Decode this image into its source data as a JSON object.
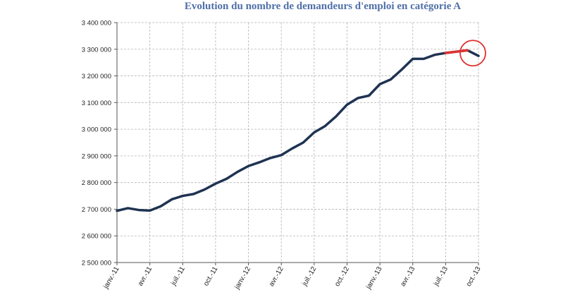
{
  "chart_data": {
    "type": "line",
    "title": "Evolution du nombre de demandeurs d'emploi en catégorie A",
    "xlabel": "",
    "ylabel": "",
    "ylim": [
      2500000,
      3400000
    ],
    "yticks": [
      2500000,
      2600000,
      2700000,
      2800000,
      2900000,
      3000000,
      3100000,
      3200000,
      3300000,
      3400000
    ],
    "ytick_labels": [
      "2 500 000",
      "2 600 000",
      "2 700 000",
      "2 800 000",
      "2 900 000",
      "3 000 000",
      "3 100 000",
      "3 200 000",
      "3 300 000",
      "3 400 000"
    ],
    "xtick_labels": [
      {
        "index": 0,
        "label": "janv.-11"
      },
      {
        "index": 3,
        "label": "avr.-11"
      },
      {
        "index": 6,
        "label": "juil.-11"
      },
      {
        "index": 9,
        "label": "oct.-11"
      },
      {
        "index": 12,
        "label": "janv.-12"
      },
      {
        "index": 15,
        "label": "avr.-12"
      },
      {
        "index": 18,
        "label": "juil.-12"
      },
      {
        "index": 21,
        "label": "oct.-12"
      },
      {
        "index": 24,
        "label": "janv.-13"
      },
      {
        "index": 27,
        "label": "avr.-13"
      },
      {
        "index": 30,
        "label": "juil.-13"
      },
      {
        "index": 33,
        "label": "oct.-13"
      }
    ],
    "x": [
      "janv.-11",
      "févr.-11",
      "mars-11",
      "avr.-11",
      "mai-11",
      "juin-11",
      "juil.-11",
      "août-11",
      "sept.-11",
      "oct.-11",
      "nov.-11",
      "déc.-11",
      "janv.-12",
      "févr.-12",
      "mars-12",
      "avr.-12",
      "mai-12",
      "juin-12",
      "juil.-12",
      "août-12",
      "sept.-12",
      "oct.-12",
      "nov.-12",
      "déc.-12",
      "janv.-13",
      "févr.-13",
      "mars-13",
      "avr.-13",
      "mai-13",
      "juin-13",
      "juil.-13",
      "août-13",
      "sept.-13",
      "oct.-13"
    ],
    "series": [
      {
        "values": [
          2694000,
          2704000,
          2697000,
          2695000,
          2711000,
          2737000,
          2750000,
          2757000,
          2774000,
          2796000,
          2814000,
          2840000,
          2862000,
          2876000,
          2892000,
          2903000,
          2928000,
          2950000,
          2988000,
          3012000,
          3048000,
          3092000,
          3117000,
          3126000,
          3169000,
          3187000,
          3224000,
          3264000,
          3264000,
          3279000,
          3286000,
          3291000,
          3296000,
          3275000
        ],
        "color": "#1f3352"
      }
    ],
    "highlight": {
      "segment_color": "#e03030",
      "segment_from_index": 30,
      "segment_to_index": 32,
      "circle_index": 33,
      "circle_color": "#e03030"
    },
    "grid": true,
    "grid_style": "dashed",
    "legend": "none"
  }
}
